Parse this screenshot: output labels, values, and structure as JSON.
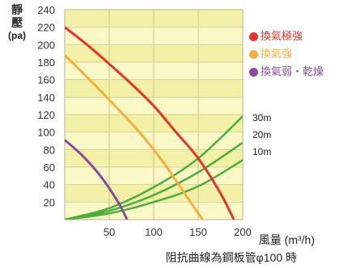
{
  "chart_data": {
    "type": "line",
    "ylabel": "靜壓",
    "yunit": "(pa)",
    "xlabel": "風量 (m³/h)",
    "note": "阻抗曲線為鋼板管φ100 時",
    "xlim": [
      0,
      200
    ],
    "ylim": [
      0,
      240
    ],
    "xticks": [
      50,
      100,
      150,
      200
    ],
    "yticks": [
      20,
      40,
      60,
      80,
      100,
      120,
      140,
      160,
      180,
      200,
      220,
      240
    ],
    "grid": true,
    "legend_position": "right",
    "series": [
      {
        "name": "換氣極強",
        "color": "#e8322a",
        "x": [
          0,
          25,
          50,
          75,
          100,
          125,
          150,
          175,
          190
        ],
        "y": [
          220,
          200,
          178,
          155,
          130,
          100,
          70,
          30,
          0
        ]
      },
      {
        "name": "換氣強",
        "color": "#f5b03c",
        "x": [
          0,
          25,
          50,
          75,
          100,
          120,
          140,
          155
        ],
        "y": [
          188,
          163,
          137,
          110,
          80,
          52,
          22,
          0
        ]
      },
      {
        "name": "換氣弱・乾燥",
        "color": "#8a4a9e",
        "x": [
          0,
          20,
          40,
          60,
          70
        ],
        "y": [
          91,
          73,
          50,
          20,
          0
        ]
      }
    ],
    "resistance_curves": [
      {
        "name": "30m",
        "color": "#4cae3c",
        "x": [
          0,
          50,
          100,
          150,
          200
        ],
        "y": [
          0,
          13,
          37,
          70,
          118
        ]
      },
      {
        "name": "20m",
        "color": "#4cae3c",
        "x": [
          0,
          50,
          100,
          150,
          200
        ],
        "y": [
          0,
          10,
          28,
          54,
          88
        ]
      },
      {
        "name": "10m",
        "color": "#4cae3c",
        "x": [
          0,
          50,
          100,
          150,
          200
        ],
        "y": [
          0,
          7,
          20,
          38,
          68
        ]
      }
    ]
  }
}
